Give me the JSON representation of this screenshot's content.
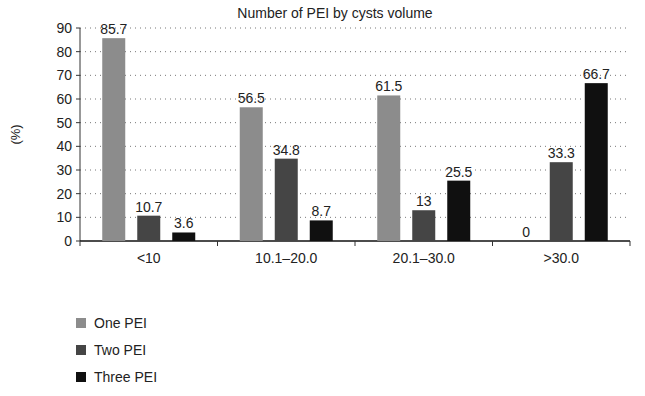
{
  "chart_data": {
    "type": "bar",
    "title": "Number of PEI by cysts volume",
    "y_label": "(%)",
    "categories": [
      "<10",
      "10.1–20.0",
      "20.1–30.0",
      ">30.0"
    ],
    "series": [
      {
        "name": "One PEI",
        "color": "#8c8c8c",
        "values": [
          85.7,
          56.5,
          61.5,
          0
        ]
      },
      {
        "name": "Two PEI",
        "color": "#454545",
        "values": [
          10.7,
          34.8,
          13,
          33.3
        ]
      },
      {
        "name": "Three PEI",
        "color": "#101010",
        "values": [
          3.6,
          8.7,
          25.5,
          66.7
        ]
      }
    ],
    "ylim": [
      0,
      90
    ],
    "yticks": [
      0,
      10,
      20,
      30,
      40,
      50,
      60,
      70,
      80,
      90
    ],
    "grid": true,
    "data_labels": true,
    "legend": "bottom-left"
  }
}
